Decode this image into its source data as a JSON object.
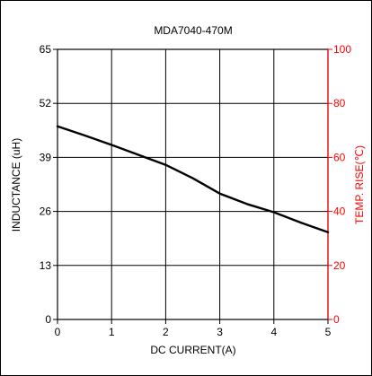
{
  "chart_data": {
    "type": "line",
    "title": "MDA7040-470M",
    "xlabel": "DC CURRENT(A)",
    "ylabel": "INDUCTANCE (uH)",
    "y2label": "TEMP. RISE(℃)",
    "xlim": [
      0,
      5
    ],
    "ylim": [
      0,
      65
    ],
    "y2lim": [
      0,
      100
    ],
    "x_ticks": [
      "0",
      "1",
      "2",
      "3",
      "4",
      "5"
    ],
    "y_ticks": [
      "0",
      "13",
      "26",
      "39",
      "52",
      "65"
    ],
    "y2_ticks": [
      "0",
      "20",
      "40",
      "60",
      "80",
      "100"
    ],
    "grid": true,
    "colors": {
      "axis": "#000000",
      "curve": "#000000",
      "right_axis": "#ff0000"
    },
    "series": [
      {
        "x": [
          0,
          0.5,
          1,
          1.5,
          2,
          2.5,
          3,
          3.5,
          4,
          4.5,
          5
        ],
        "y": [
          46.5,
          44.3,
          42.0,
          39.6,
          37.2,
          34.0,
          30.3,
          27.8,
          25.8,
          23.3,
          21.0
        ]
      }
    ]
  }
}
